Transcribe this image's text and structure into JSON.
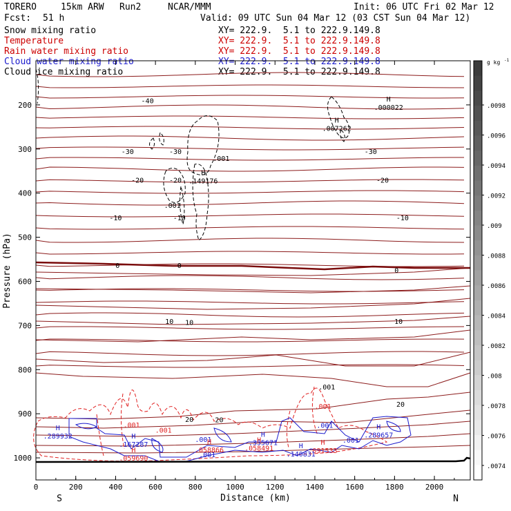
{
  "header": {
    "model": "TORERO",
    "run_info": "15km ARW",
    "run": "Run2",
    "org": "NCAR/MMM",
    "init": "Init: 06 UTC Fri 02 Mar 12",
    "fcst_label": "Fcst:",
    "fcst_value": "51 h",
    "valid": "Valid: 09 UTC Sun 04 Mar 12 (03 CST Sun 04 Mar 12)"
  },
  "fields": [
    {
      "name": "Snow mixing ratio",
      "xy": "XY= 222.9.  5.1 to 222.9.149.8",
      "color": "#000000"
    },
    {
      "name": "Temperature",
      "xy": "XY= 222.9.  5.1 to 222.9.149.8",
      "color": "#cc0000"
    },
    {
      "name": "Rain water mixing ratio",
      "xy": "XY= 222.9.  5.1 to 222.9.149.8",
      "color": "#cc0000"
    },
    {
      "name": "Cloud water mixing ratio",
      "xy": "XY= 222.9.  5.1 to 222.9.149.8",
      "color": "#1a1acc"
    },
    {
      "name": "Cloud ice mixing ratio",
      "xy": "XY= 222.9.  5.1 to 222.9.149.8",
      "color": "#000000"
    }
  ],
  "chart_data": {
    "type": "line",
    "xlabel": "Distance (km)",
    "ylabel": "Pressure (hPa)",
    "xlim": [
      0,
      2180
    ],
    "ylim": [
      1050,
      100
    ],
    "x_ticks": [
      0,
      200,
      400,
      600,
      800,
      1000,
      1200,
      1400,
      1600,
      1800,
      2000
    ],
    "y_ticks": [
      200,
      300,
      400,
      500,
      600,
      700,
      800,
      900,
      1000
    ],
    "x_end_labels": {
      "left": "S",
      "right": "N"
    },
    "temperature_isotherms_C": [
      {
        "label": "-40",
        "x": 560,
        "p": 190
      },
      {
        "label": "-30",
        "x": 460,
        "p": 305
      },
      {
        "label": "-30",
        "x": 700,
        "p": 305
      },
      {
        "label": "-30",
        "x": 1680,
        "p": 305
      },
      {
        "label": "-20",
        "x": 510,
        "p": 370
      },
      {
        "label": "-20",
        "x": 700,
        "p": 370
      },
      {
        "label": "-20",
        "x": 1740,
        "p": 370
      },
      {
        "label": "-10",
        "x": 400,
        "p": 455
      },
      {
        "label": "-10",
        "x": 720,
        "p": 455
      },
      {
        "label": "-10",
        "x": 1840,
        "p": 455
      },
      {
        "label": "0",
        "x": 410,
        "p": 563
      },
      {
        "label": "0",
        "x": 720,
        "p": 563
      },
      {
        "label": "0",
        "x": 1810,
        "p": 574
      },
      {
        "label": "10",
        "x": 670,
        "p": 690
      },
      {
        "label": "10",
        "x": 770,
        "p": 692
      },
      {
        "label": "10",
        "x": 1820,
        "p": 690
      },
      {
        "label": "20",
        "x": 770,
        "p": 912
      },
      {
        "label": "20",
        "x": 920,
        "p": 913
      },
      {
        "label": "20",
        "x": 1830,
        "p": 878
      }
    ],
    "maxima_labels": [
      {
        "marker": "H",
        "value": ".000022",
        "x": 1770,
        "p": 208
      },
      {
        "marker": "H",
        "value": ".007262",
        "x": 1510,
        "p": 256
      },
      {
        "marker": "",
        "value": ".001",
        "x": 930,
        "p": 324
      },
      {
        "marker": "H",
        "value": ".149176",
        "x": 840,
        "p": 375
      },
      {
        "marker": "",
        "value": ".001",
        "x": 685,
        "p": 430
      },
      {
        "marker": "",
        "value": ".001",
        "x": 1440,
        "p": 886
      },
      {
        "marker": "",
        "value": ".001",
        "x": 1450,
        "p": 929
      },
      {
        "marker": "H",
        "value": ".289657",
        "x": 1720,
        "p": 951
      },
      {
        "marker": "H",
        "value": ".289932",
        "x": 110,
        "p": 953
      },
      {
        "marker": "",
        "value": ".001",
        "x": 480,
        "p": 928
      },
      {
        "marker": "",
        "value": ".001",
        "x": 640,
        "p": 940
      },
      {
        "marker": "H",
        "value": ".167287",
        "x": 490,
        "p": 972
      },
      {
        "marker": "",
        "value": ".001",
        "x": 840,
        "p": 961
      },
      {
        "marker": "H",
        "value": ".355671",
        "x": 1140,
        "p": 968
      },
      {
        "marker": "H",
        "value": ".058491",
        "x": 1120,
        "p": 980
      },
      {
        "marker": "H",
        "value": ".058866",
        "x": 870,
        "p": 984
      },
      {
        "marker": "",
        "value": ".001",
        "x": 1580,
        "p": 962
      },
      {
        "marker": "H",
        "value": ".091533",
        "x": 1440,
        "p": 986
      },
      {
        "marker": "H",
        "value": ".140831",
        "x": 1330,
        "p": 994
      },
      {
        "marker": "",
        "value": ".001",
        "x": 860,
        "p": 995
      },
      {
        "marker": "H",
        "value": ".059690",
        "x": 490,
        "p": 1003
      },
      {
        "marker": "",
        "value": ".001",
        "x": 1460,
        "p": 842
      }
    ],
    "colorbar": {
      "unit": "g kg",
      "unit_exp": "-1",
      "labels": [
        ".0098",
        ".0096",
        ".0094",
        ".0092",
        ".009",
        ".0088",
        ".0086",
        ".0084",
        ".0082",
        ".008",
        ".0078",
        ".0076",
        ".0074"
      ]
    },
    "colors": {
      "temperature": "#8b1a1a",
      "freezing_line": "#7a0c0c",
      "rain": "#e02020",
      "cloud_water": "#1a1acc",
      "snow": "#000000",
      "ground": "#000000"
    }
  }
}
